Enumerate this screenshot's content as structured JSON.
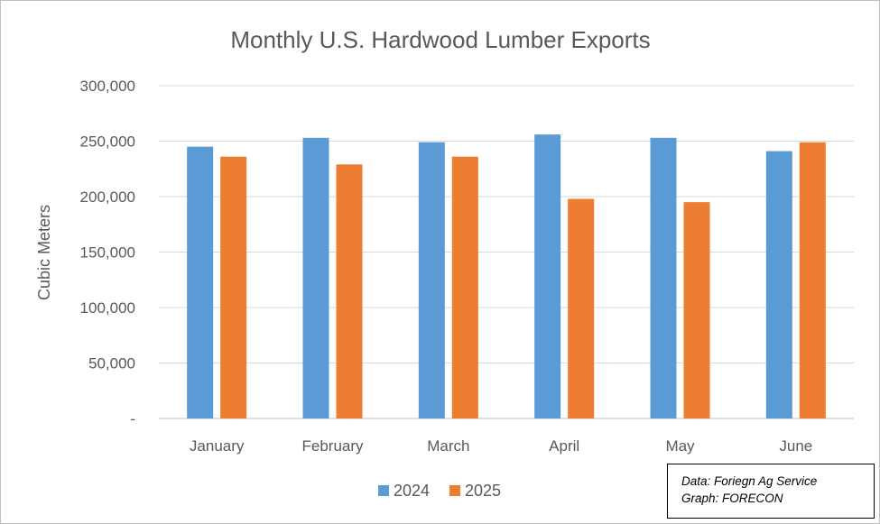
{
  "chart_data": {
    "type": "bar",
    "title": "Monthly U.S. Hardwood Lumber Exports",
    "ylabel": "Cubic Meters",
    "xlabel": "",
    "categories": [
      "January",
      "February",
      "March",
      "April",
      "May",
      "June"
    ],
    "series": [
      {
        "name": "2024",
        "color": "#5b9bd5",
        "values": [
          245000,
          253000,
          249000,
          256000,
          253000,
          241000
        ]
      },
      {
        "name": "2025",
        "color": "#ed7d31",
        "values": [
          236000,
          229000,
          236000,
          198000,
          195000,
          249000
        ]
      }
    ],
    "ylim": [
      0,
      300000
    ],
    "yticks": [
      0,
      50000,
      100000,
      150000,
      200000,
      250000,
      300000
    ],
    "ytick_labels": [
      "-",
      "50,000",
      "100,000",
      "150,000",
      "200,000",
      "250,000",
      "300,000"
    ],
    "grid": true,
    "legend_position": "bottom"
  },
  "note": {
    "line1": "Data: Foriegn Ag Service",
    "line2": "Graph: FORECON"
  }
}
